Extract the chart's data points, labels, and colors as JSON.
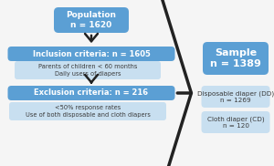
{
  "bg_color": "#f5f5f5",
  "box_dark_blue": "#5b9fd4",
  "box_light_blue": "#c8dff0",
  "text_white": "#ffffff",
  "text_dark": "#3a3a3a",
  "population_text": "Population\nn = 1620",
  "inclusion_text": "Inclusion criteria: n = 1605",
  "inclusion_sub": "Parents of children < 60 months\nDaily users of diapers",
  "exclusion_text": "Exclusion criteria: n = 216",
  "exclusion_sub": "<50% response rates\nUse of both disposable and cloth diapers",
  "sample_text": "Sample\nn = 1389",
  "dd_text": "Disposable diaper (DD)\nn = 1269",
  "cd_text": "Cloth diaper (CD)\nn = 120",
  "arrow_color": "#222222",
  "figw": 3.0,
  "figh": 1.82,
  "dpi": 100
}
